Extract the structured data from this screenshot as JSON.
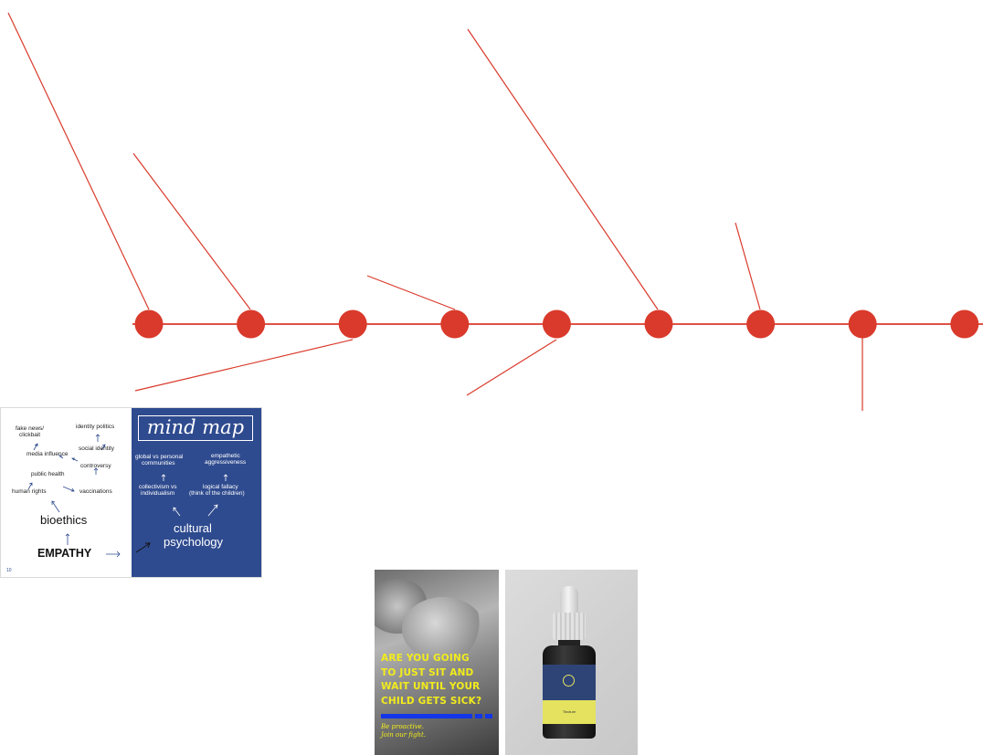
{
  "colors": {
    "timeline": "#d93a2b",
    "mindmap_blue": "#2f4b8f",
    "poster_yellow": "#f2ec1c",
    "poster_blue": "#1236e8"
  },
  "timeline": {
    "node_count": 9
  },
  "mind_map": {
    "title": "mind map",
    "left": {
      "fake_news_1": "fake news/",
      "fake_news_2": "clickbait",
      "identity_politics": "identity politics",
      "media_influence": "media influence",
      "social_identity": "social identity",
      "controversy": "controversy",
      "public_health": "public health",
      "human_rights": "human rights",
      "vaccinations": "vaccinations",
      "bioethics": "bioethics",
      "empathy": "EMPATHY"
    },
    "right": {
      "global_1": "global vs personal",
      "global_2": "communities",
      "empathetic_1": "empathetic",
      "empathetic_2": "aggressiveness",
      "collectivism_1": "collectivism vs",
      "collectivism_2": "individualism",
      "logical_1": "logical fallacy",
      "logical_2": "(think of the children)",
      "cultural_1": "cultural",
      "cultural_2": "psychology"
    },
    "page_number": "10"
  },
  "poster": {
    "headline": [
      "ARE YOU GOING",
      "TO JUST SIT AND",
      "WAIT UNTIL YOUR",
      "CHILD GETS SICK?"
    ],
    "subline": [
      "Be proactive.",
      "Join our fight."
    ]
  },
  "bottle": {
    "label_text": "Tincture"
  }
}
